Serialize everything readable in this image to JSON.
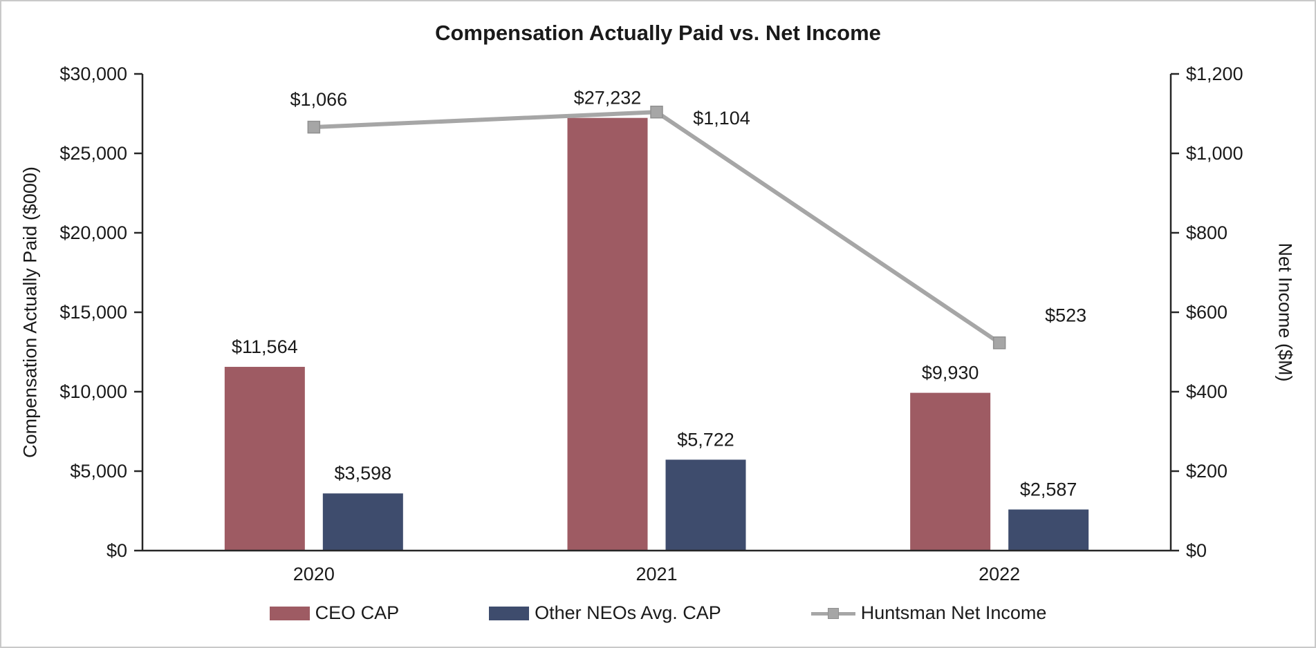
{
  "title": "Compensation Actually Paid vs. Net Income",
  "colors": {
    "ceo": "#9e5b63",
    "neo": "#3e4c6d",
    "line": "#a6a6a6",
    "axis": "#262626",
    "text": "#1a1a1a"
  },
  "chart_data": {
    "type": "combo-bar-line",
    "categories": [
      "2020",
      "2021",
      "2022"
    ],
    "bar_series": [
      {
        "name": "CEO CAP",
        "color_key": "ceo",
        "axis": "left",
        "values": [
          11564,
          27232,
          9930
        ],
        "labels": [
          "$11,564",
          "$27,232",
          "$9,930"
        ]
      },
      {
        "name": "Other NEOs Avg. CAP",
        "color_key": "neo",
        "axis": "left",
        "values": [
          3598,
          5722,
          2587
        ],
        "labels": [
          "$3,598",
          "$5,722",
          "$2,587"
        ]
      }
    ],
    "line_series": [
      {
        "name": "Huntsman Net Income",
        "color_key": "line",
        "axis": "right",
        "values": [
          1066,
          1104,
          523
        ],
        "labels": [
          "$1,066",
          "$1,104",
          "$523"
        ]
      }
    ],
    "left_axis": {
      "label": "Compensation Actually Paid ($000)",
      "min": 0,
      "max": 30000,
      "step": 5000,
      "tick_labels": [
        "$0",
        "$5,000",
        "$10,000",
        "$15,000",
        "$20,000",
        "$25,000",
        "$30,000"
      ]
    },
    "right_axis": {
      "label": "Net Income ($M)",
      "min": 0,
      "max": 1200,
      "step": 200,
      "tick_labels": [
        "$0",
        "$200",
        "$400",
        "$600",
        "$800",
        "$1,000",
        "$1,200"
      ]
    },
    "grid": false,
    "legend_position": "bottom"
  }
}
